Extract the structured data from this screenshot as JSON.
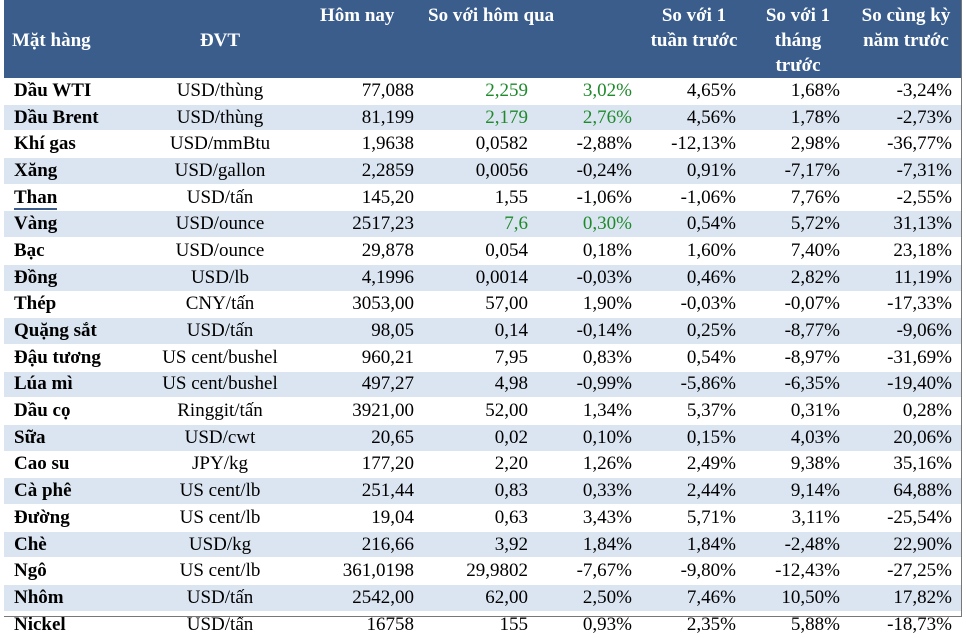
{
  "headers": [
    "Mặt hàng",
    "ĐVT",
    "Hôm nay",
    "So với hôm qua",
    "",
    "So với 1 tuần trước",
    "So với 1 tháng trước",
    "So cùng kỳ năm trước"
  ],
  "rows": [
    {
      "name": "Dầu WTI",
      "unit": "USD/thùng",
      "today": "77,088",
      "chg": "2,259",
      "chg_pct": "3,02%",
      "week": "4,65%",
      "month": "1,68%",
      "year": "-3,24%",
      "pos": true
    },
    {
      "name": "Dầu Brent",
      "unit": "USD/thùng",
      "today": "81,199",
      "chg": "2,179",
      "chg_pct": "2,76%",
      "week": "4,56%",
      "month": "1,78%",
      "year": "-2,73%",
      "pos": true
    },
    {
      "name": "Khí gas",
      "unit": "USD/mmBtu",
      "today": "1,9638",
      "chg": "0,0582",
      "chg_pct": "-2,88%",
      "week": "-12,13%",
      "month": "2,98%",
      "year": "-36,77%",
      "pos": false
    },
    {
      "name": "Xăng",
      "unit": "USD/gallon",
      "today": "2,2859",
      "chg": "0,0056",
      "chg_pct": "-0,24%",
      "week": "0,91%",
      "month": "-7,17%",
      "year": "-7,31%",
      "pos": false
    },
    {
      "name": "Than",
      "unit": "USD/tấn",
      "today": "145,20",
      "chg": "1,55",
      "chg_pct": "-1,06%",
      "week": "-1,06%",
      "month": "7,76%",
      "year": "-2,55%",
      "pos": false
    },
    {
      "name": "Vàng",
      "unit": "USD/ounce",
      "today": "2517,23",
      "chg": "7,6",
      "chg_pct": "0,30%",
      "week": "0,54%",
      "month": "5,72%",
      "year": "31,13%",
      "pos": true
    },
    {
      "name": "Bạc",
      "unit": "USD/ounce",
      "today": "29,878",
      "chg": "0,054",
      "chg_pct": "0,18%",
      "week": "1,60%",
      "month": "7,40%",
      "year": "23,18%",
      "pos": false
    },
    {
      "name": "Đồng",
      "unit": "USD/lb",
      "today": "4,1996",
      "chg": "0,0014",
      "chg_pct": "-0,03%",
      "week": "0,46%",
      "month": "2,82%",
      "year": "11,19%",
      "pos": false
    },
    {
      "name": "Thép",
      "unit": "CNY/tấn",
      "today": "3053,00",
      "chg": "57,00",
      "chg_pct": "1,90%",
      "week": "-0,03%",
      "month": "-0,07%",
      "year": "-17,33%",
      "pos": false
    },
    {
      "name": "Quặng sắt",
      "unit": "USD/tấn",
      "today": "98,05",
      "chg": "0,14",
      "chg_pct": "-0,14%",
      "week": "0,25%",
      "month": "-8,77%",
      "year": "-9,06%",
      "pos": false
    },
    {
      "name": "Đậu tương",
      "unit": "US cent/bushel",
      "today": "960,21",
      "chg": "7,95",
      "chg_pct": "0,83%",
      "week": "0,54%",
      "month": "-8,97%",
      "year": "-31,69%",
      "pos": false
    },
    {
      "name": "Lúa mì",
      "unit": "US cent/bushel",
      "today": "497,27",
      "chg": "4,98",
      "chg_pct": "-0,99%",
      "week": "-5,86%",
      "month": "-6,35%",
      "year": "-19,40%",
      "pos": false
    },
    {
      "name": "Dầu cọ",
      "unit": "Ringgit/tấn",
      "today": "3921,00",
      "chg": "52,00",
      "chg_pct": "1,34%",
      "week": "5,37%",
      "month": "0,31%",
      "year": "0,28%",
      "pos": false
    },
    {
      "name": "Sữa",
      "unit": "USD/cwt",
      "today": "20,65",
      "chg": "0,02",
      "chg_pct": "0,10%",
      "week": "0,15%",
      "month": "4,03%",
      "year": "20,06%",
      "pos": false
    },
    {
      "name": "Cao su",
      "unit": "JPY/kg",
      "today": "177,20",
      "chg": "2,20",
      "chg_pct": "1,26%",
      "week": "2,49%",
      "month": "9,38%",
      "year": "35,16%",
      "pos": false
    },
    {
      "name": "Cà phê",
      "unit": "US cent/lb",
      "today": "251,44",
      "chg": "0,83",
      "chg_pct": "0,33%",
      "week": "2,44%",
      "month": "9,14%",
      "year": "64,88%",
      "pos": false
    },
    {
      "name": "Đường",
      "unit": "US cent/lb",
      "today": "19,04",
      "chg": "0,63",
      "chg_pct": "3,43%",
      "week": "5,71%",
      "month": "3,11%",
      "year": "-25,54%",
      "pos": false
    },
    {
      "name": "Chè",
      "unit": "USD/kg",
      "today": "216,66",
      "chg": "3,92",
      "chg_pct": "1,84%",
      "week": "1,84%",
      "month": "-2,48%",
      "year": "22,90%",
      "pos": false
    },
    {
      "name": "Ngô",
      "unit": "US cent/lb",
      "today": "361,0198",
      "chg": "29,9802",
      "chg_pct": "-7,67%",
      "week": "-9,80%",
      "month": "-12,43%",
      "year": "-27,25%",
      "pos": false
    },
    {
      "name": "Nhôm",
      "unit": "USD/tấn",
      "today": "2542,00",
      "chg": "62,00",
      "chg_pct": "2,50%",
      "week": "7,46%",
      "month": "10,50%",
      "year": "17,82%",
      "pos": false
    },
    {
      "name": "Nickel",
      "unit": "USD/tấn",
      "today": "16758",
      "chg": "155",
      "chg_pct": "0,93%",
      "week": "2,35%",
      "month": "5,88%",
      "year": "-18,73%",
      "pos": false
    }
  ],
  "colors": {
    "header_bg": "#3a5d8c",
    "stripe": "#dbe5f1",
    "positive": "#1e8a2b"
  }
}
